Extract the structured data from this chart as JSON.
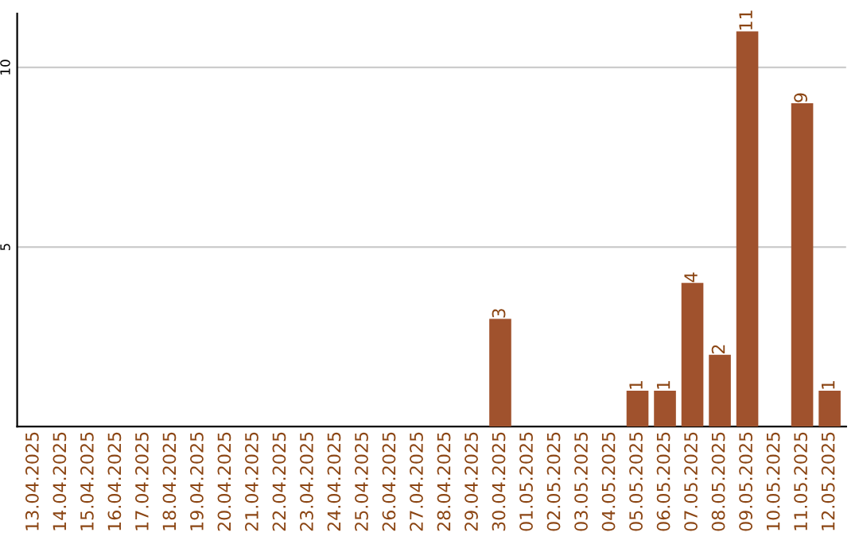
{
  "chart_data": {
    "type": "bar",
    "categories": [
      "13.04.2025",
      "14.04.2025",
      "15.04.2025",
      "16.04.2025",
      "17.04.2025",
      "18.04.2025",
      "19.04.2025",
      "20.04.2025",
      "21.04.2025",
      "22.04.2025",
      "23.04.2025",
      "24.04.2025",
      "25.04.2025",
      "26.04.2025",
      "27.04.2025",
      "28.04.2025",
      "29.04.2025",
      "30.04.2025",
      "01.05.2025",
      "02.05.2025",
      "03.05.2025",
      "04.05.2025",
      "05.05.2025",
      "06.05.2025",
      "07.05.2025",
      "08.05.2025",
      "09.05.2025",
      "10.05.2025",
      "11.05.2025",
      "12.05.2025"
    ],
    "values": [
      0,
      0,
      0,
      0,
      0,
      0,
      0,
      0,
      0,
      0,
      0,
      0,
      0,
      0,
      0,
      0,
      0,
      3,
      0,
      0,
      0,
      0,
      1,
      1,
      4,
      2,
      11,
      0,
      9,
      1
    ],
    "value_labels": [
      null,
      null,
      null,
      null,
      null,
      null,
      null,
      null,
      null,
      null,
      null,
      null,
      null,
      null,
      null,
      null,
      null,
      "3",
      null,
      null,
      null,
      null,
      "1",
      "1",
      "4",
      "2",
      "11",
      null,
      "9",
      "1"
    ],
    "color": "#a0522d",
    "ylim": [
      0,
      11.5
    ],
    "yticks": [
      5,
      10
    ],
    "grid": "y"
  }
}
